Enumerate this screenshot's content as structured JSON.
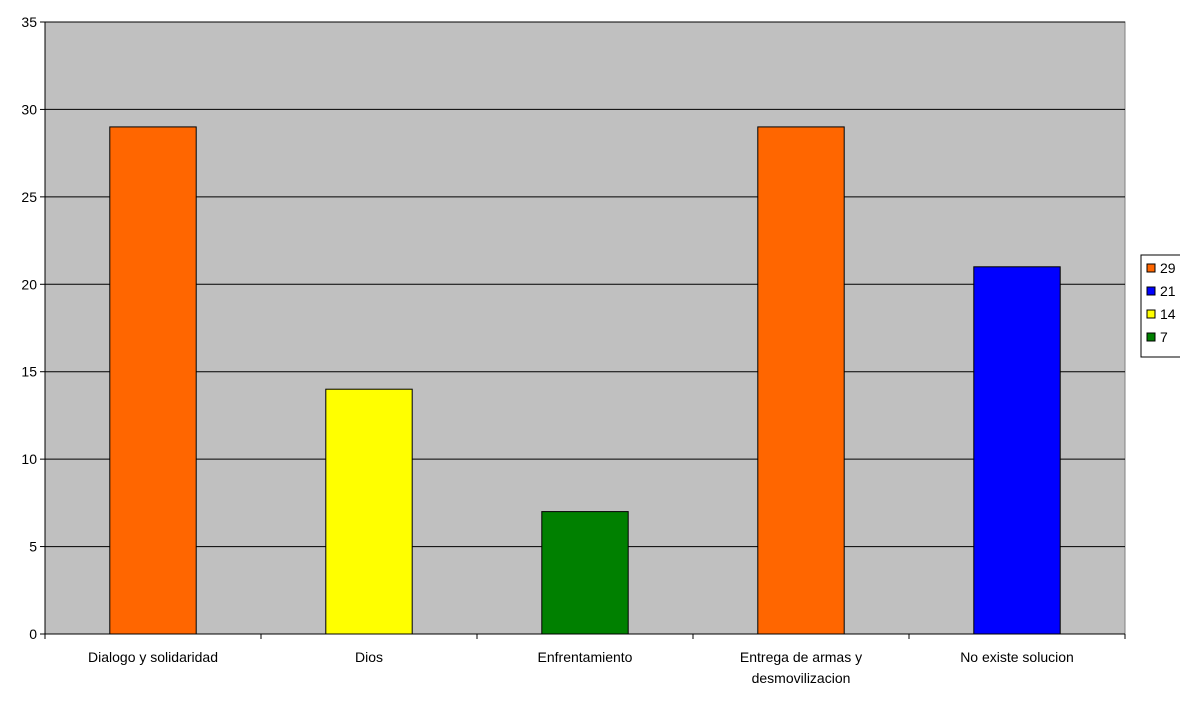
{
  "chart_data": {
    "type": "bar",
    "title": "",
    "xlabel": "",
    "ylabel": "",
    "ylim": [
      0,
      35
    ],
    "ytick_step": 5,
    "yticks": [
      "0",
      "5",
      "10",
      "15",
      "20",
      "25",
      "30",
      "35"
    ],
    "grid": true,
    "plot_background": "#c0c0c0",
    "categories": [
      [
        "Dialogo y solidaridad"
      ],
      [
        "Dios"
      ],
      [
        "Enfrentamiento"
      ],
      [
        "Entrega de armas y",
        "desmovilizacion"
      ],
      [
        "No existe solucion"
      ]
    ],
    "values": [
      29,
      14,
      7,
      29,
      21
    ],
    "bar_colors": [
      "#ff6600",
      "#ffff00",
      "#008000",
      "#ff6600",
      "#0000ff"
    ],
    "legend": {
      "placement": "right",
      "items": [
        {
          "label": "29",
          "color": "#ff6600"
        },
        {
          "label": "21",
          "color": "#0000ff"
        },
        {
          "label": "14",
          "color": "#ffff00"
        },
        {
          "label": "7",
          "color": "#008000"
        }
      ]
    }
  }
}
